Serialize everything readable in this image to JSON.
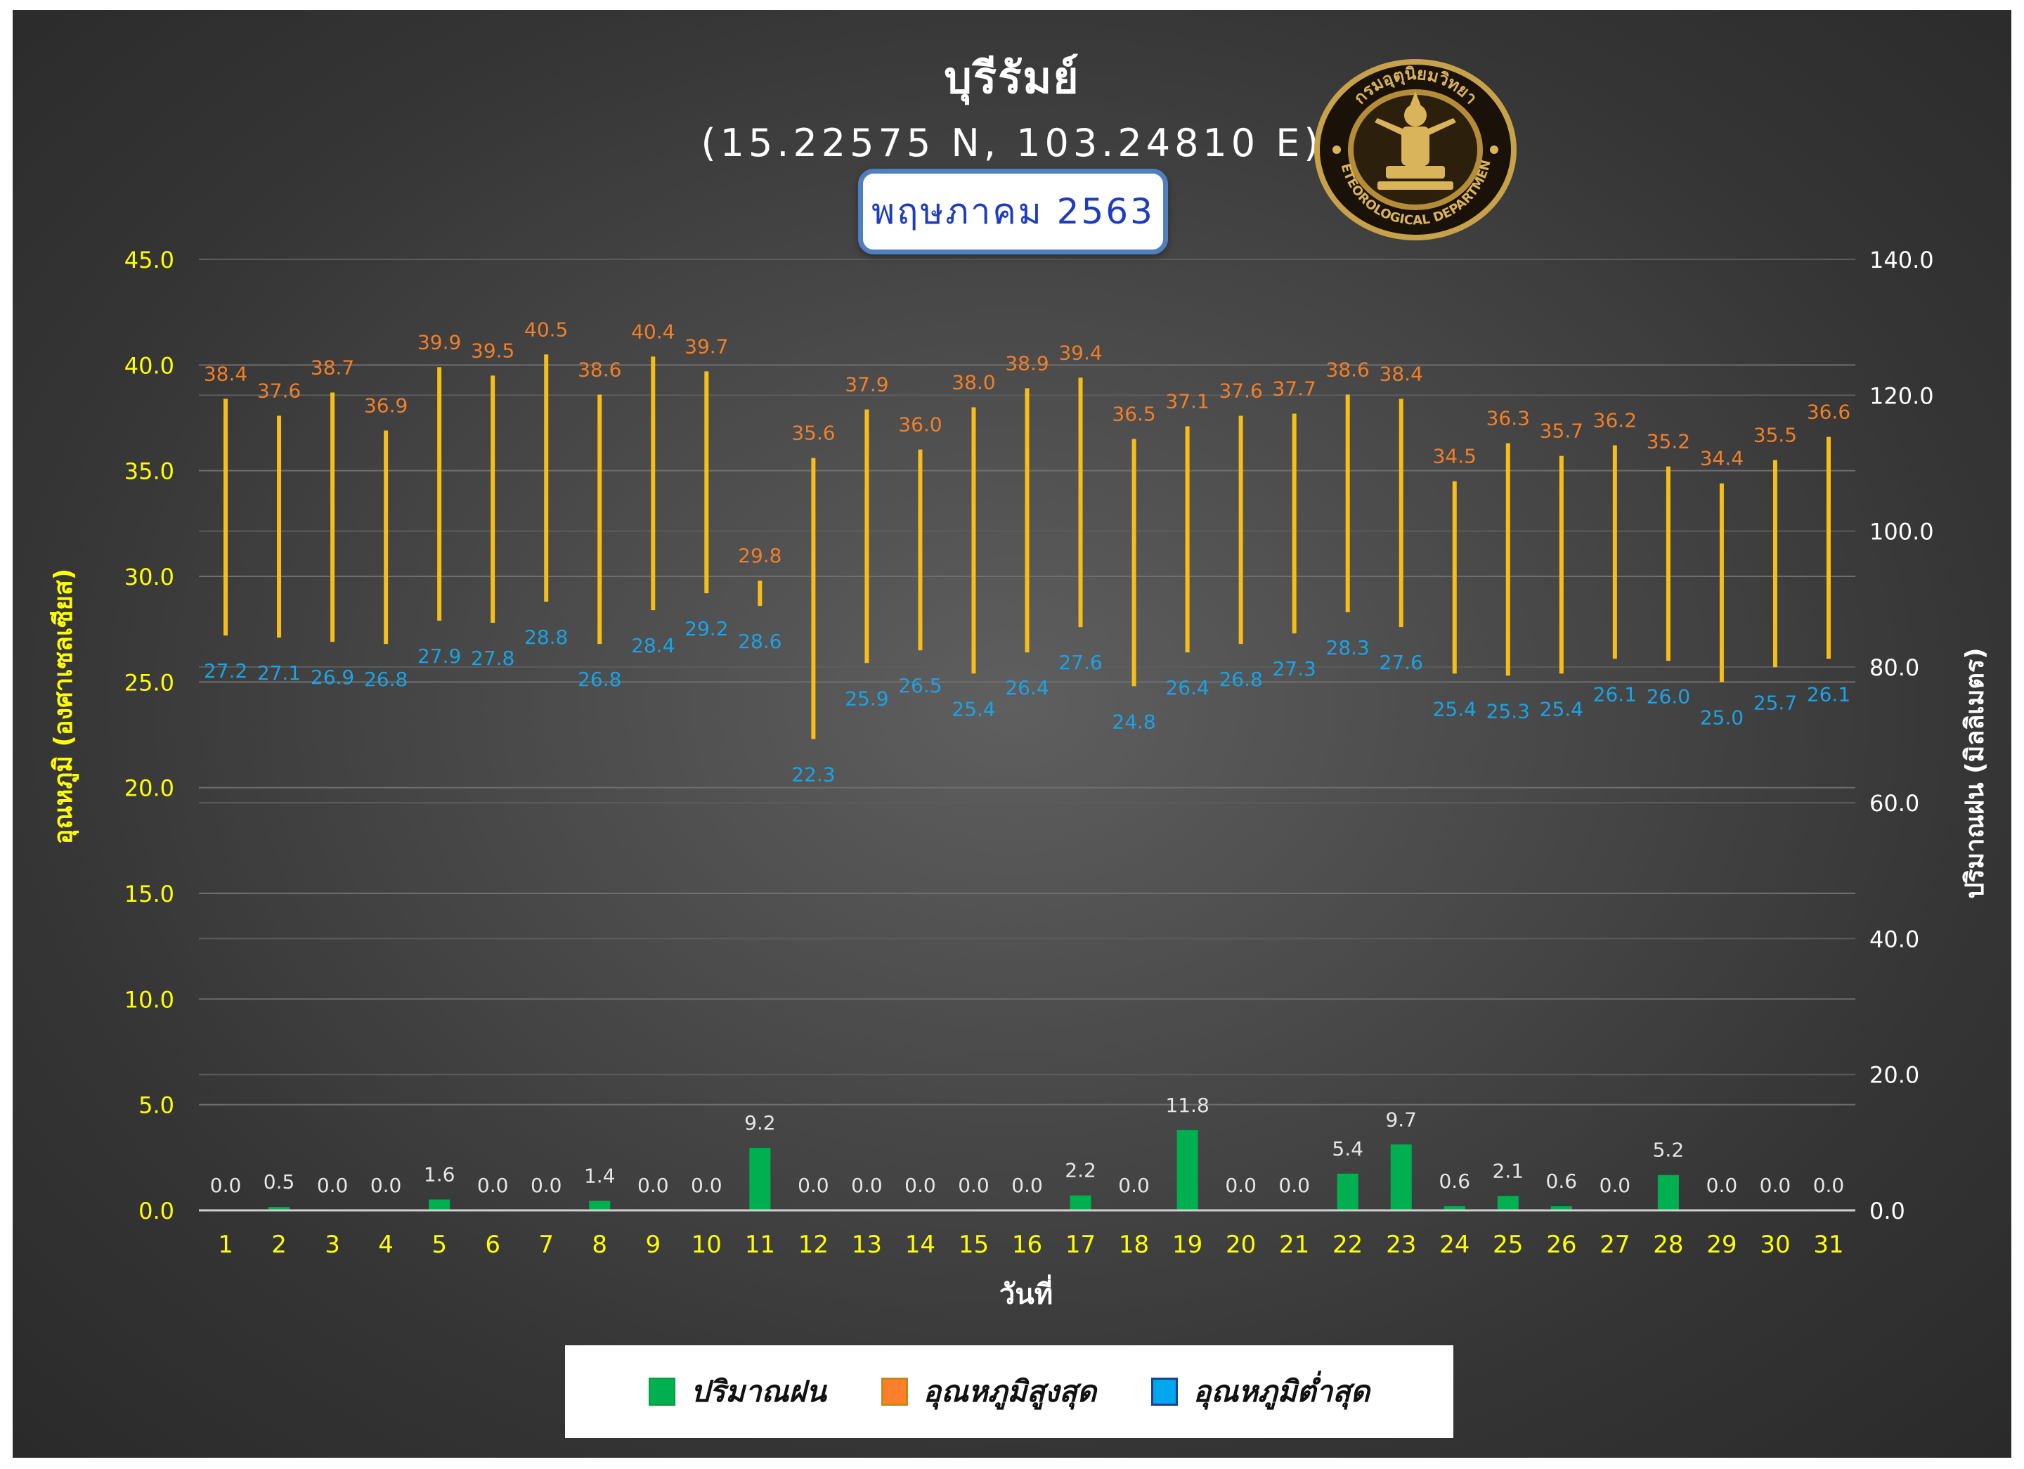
{
  "header": {
    "title": "บุรีรัมย์",
    "coords": "(15.22575 N, 103.24810 E)",
    "month": "พฤษภาคม 2563",
    "logo_text_top": "กรมอุตุนิยมวิทยา",
    "logo_text_bottom": "METEOROLOGICAL DEPARTMENT"
  },
  "legend": {
    "rain": "ปริมาณฝน",
    "max": "อุณหภูมิสูงสุด",
    "min": "อุณหภูมิต่ำสุด"
  },
  "colors": {
    "rain": "#00b050",
    "max": "#f6be17",
    "max_label": "#f07f2a",
    "min_label": "#1aa3e6",
    "axis_left": "#ffff00",
    "axis_right": "#ffffff",
    "legend_max_swatch": "#ff7f2a",
    "legend_min_swatch": "#00a7ea"
  },
  "chart_data": {
    "type": "bar",
    "xlabel": "วันที่",
    "ylabel": "อุณหภูมิ (องศาเซลเซียส)",
    "y2label": "ปริมาณฝน (มิลลิเมตร)",
    "ylim": [
      0,
      45
    ],
    "y2lim": [
      0,
      140
    ],
    "yticks": [
      "0.0",
      "5.0",
      "10.0",
      "15.0",
      "20.0",
      "25.0",
      "30.0",
      "35.0",
      "40.0",
      "45.0"
    ],
    "y2ticks": [
      "0.0",
      "20.0",
      "40.0",
      "60.0",
      "80.0",
      "100.0",
      "120.0",
      "140.0"
    ],
    "categories": [
      "1",
      "2",
      "3",
      "4",
      "5",
      "6",
      "7",
      "8",
      "9",
      "10",
      "11",
      "12",
      "13",
      "14",
      "15",
      "16",
      "17",
      "18",
      "19",
      "20",
      "21",
      "22",
      "23",
      "24",
      "25",
      "26",
      "27",
      "28",
      "29",
      "30",
      "31"
    ],
    "series": [
      {
        "name": "ปริมาณฝน",
        "axis": "right",
        "values": [
          0.0,
          0.5,
          0.0,
          0.0,
          1.6,
          0.0,
          0.0,
          1.4,
          0.0,
          0.0,
          9.2,
          0.0,
          0.0,
          0.0,
          0.0,
          0.0,
          2.2,
          0.0,
          11.8,
          0.0,
          0.0,
          5.4,
          9.7,
          0.6,
          2.1,
          0.6,
          0.0,
          5.2,
          0.0,
          0.0,
          0.0
        ]
      },
      {
        "name": "อุณหภูมิสูงสุด",
        "axis": "left",
        "values": [
          38.4,
          37.6,
          38.7,
          36.9,
          39.9,
          39.5,
          40.5,
          38.6,
          40.4,
          39.7,
          29.8,
          35.6,
          37.9,
          36.0,
          38.0,
          38.9,
          39.4,
          36.5,
          37.1,
          37.6,
          37.7,
          38.6,
          38.4,
          34.5,
          36.3,
          35.7,
          36.2,
          35.2,
          34.4,
          35.5,
          36.6
        ]
      },
      {
        "name": "อุณหภูมิต่ำสุด",
        "axis": "left",
        "values": [
          27.2,
          27.1,
          26.9,
          26.8,
          27.9,
          27.8,
          28.8,
          26.8,
          28.4,
          29.2,
          28.6,
          22.3,
          25.9,
          26.5,
          25.4,
          26.4,
          27.6,
          24.8,
          26.4,
          26.8,
          27.3,
          28.3,
          27.6,
          25.4,
          25.3,
          25.4,
          26.1,
          26.0,
          25.0,
          25.7,
          26.1
        ]
      }
    ]
  }
}
